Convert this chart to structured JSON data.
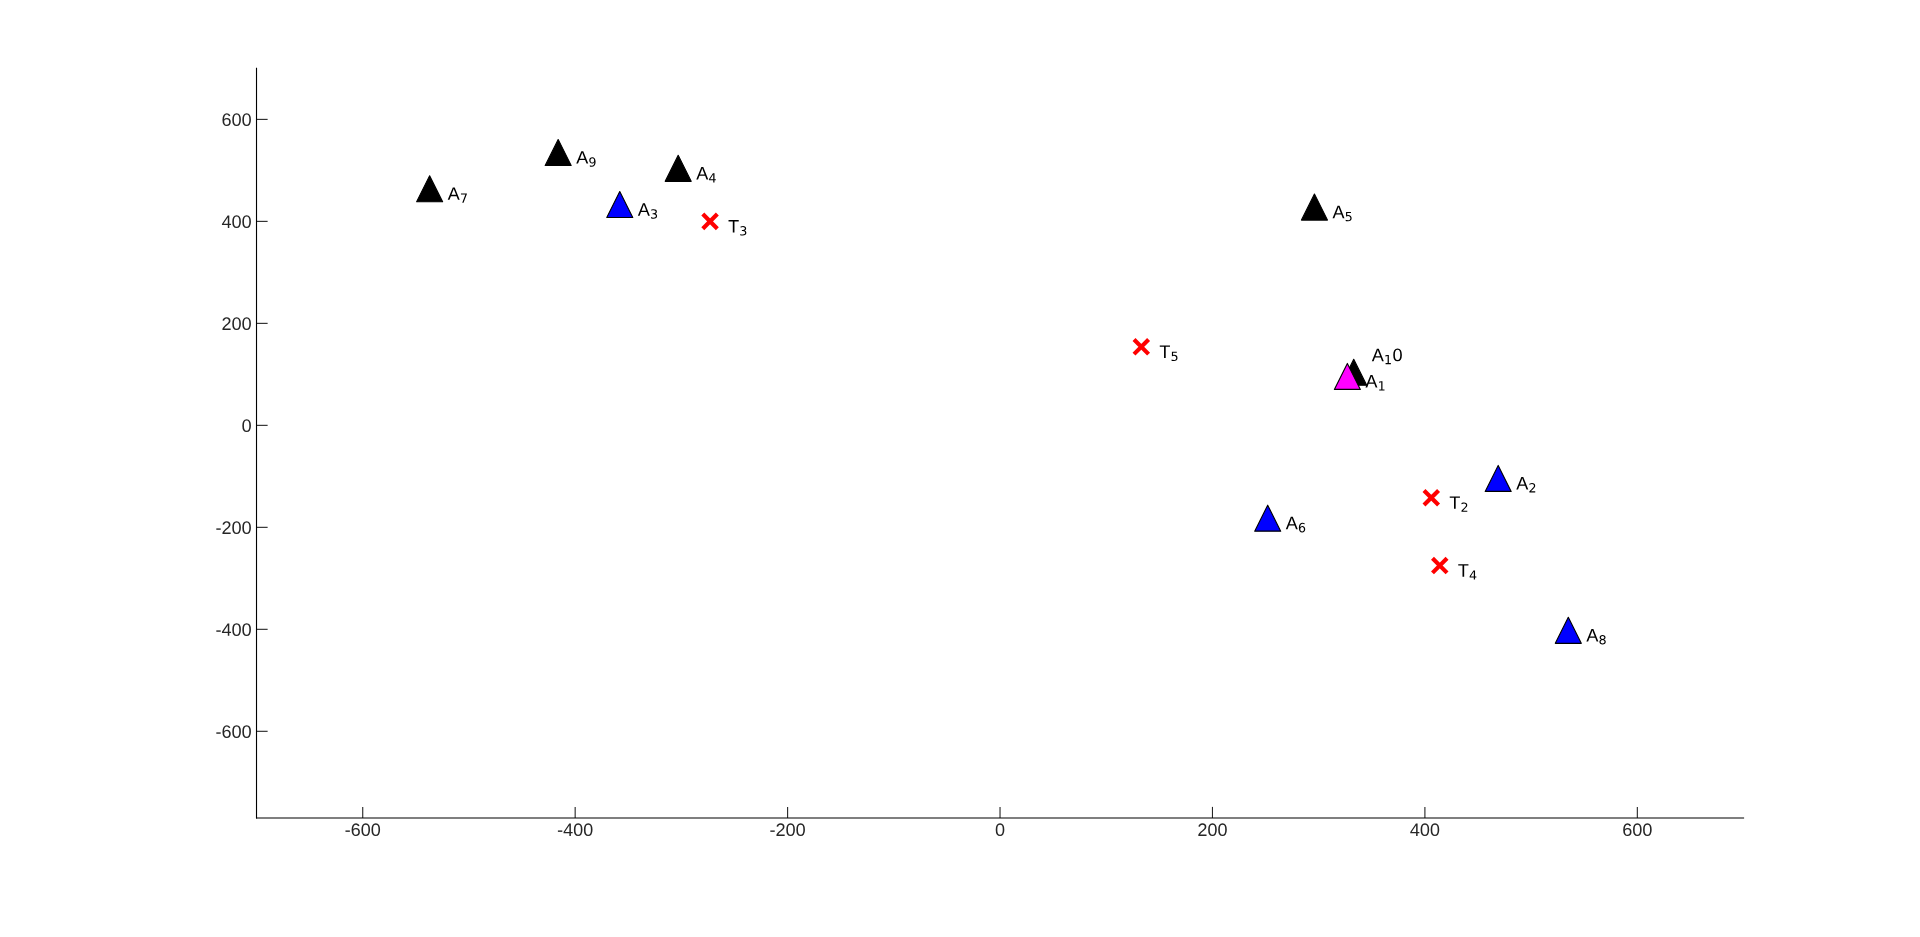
{
  "chart_data": {
    "type": "scatter",
    "xlim": [
      -700,
      700
    ],
    "ylim": [
      -770,
      700
    ],
    "xticks": [
      -600,
      -400,
      -200,
      0,
      200,
      400,
      600
    ],
    "yticks": [
      -600,
      -400,
      -200,
      0,
      200,
      400,
      600
    ],
    "grid": false,
    "legend": false,
    "series": [
      {
        "marker": "triangle",
        "x": [
          327,
          469,
          -358,
          -303,
          296,
          252,
          -537,
          535,
          -416,
          333
        ],
        "values": [
          96,
          -104,
          433,
          504,
          428,
          -182,
          464,
          -402,
          535,
          104
        ],
        "colors": [
          "#ff00ff",
          "#0000ff",
          "#0000ff",
          "#000000",
          "#000000",
          "#0000ff",
          "#000000",
          "#0000ff",
          "#000000",
          "#000000"
        ]
      },
      {
        "marker": "cross",
        "x": [
          406,
          -273,
          414,
          133
        ],
        "values": [
          -142,
          400,
          -275,
          154
        ],
        "color": "#ff0000"
      }
    ],
    "annotations": [
      {
        "text": "A$_{1}$",
        "x": 327,
        "y": 96
      },
      {
        "text": "A$_{2}$",
        "x": 469,
        "y": -104
      },
      {
        "text": "A$_{3}$",
        "x": -358,
        "y": 433
      },
      {
        "text": "A$_{4}$",
        "x": -303,
        "y": 504
      },
      {
        "text": "A$_{5}$",
        "x": 296,
        "y": 428
      },
      {
        "text": "A$_{6}$",
        "x": 252,
        "y": -182
      },
      {
        "text": "A$_{7}$",
        "x": -537,
        "y": 464
      },
      {
        "text": "A$_{8}$",
        "x": 535,
        "y": -402
      },
      {
        "text": "A$_{9}$",
        "x": -416,
        "y": 535
      },
      {
        "text": "A$_{1}$0",
        "x": 333,
        "y": 104
      },
      {
        "text": "T$_{2}$",
        "x": 406,
        "y": -142
      },
      {
        "text": "T$_{3}$",
        "x": -273,
        "y": 400
      },
      {
        "text": "T$_{4}$",
        "x": 414,
        "y": -275
      },
      {
        "text": "T$_{5}$",
        "x": 133,
        "y": 154
      }
    ]
  }
}
